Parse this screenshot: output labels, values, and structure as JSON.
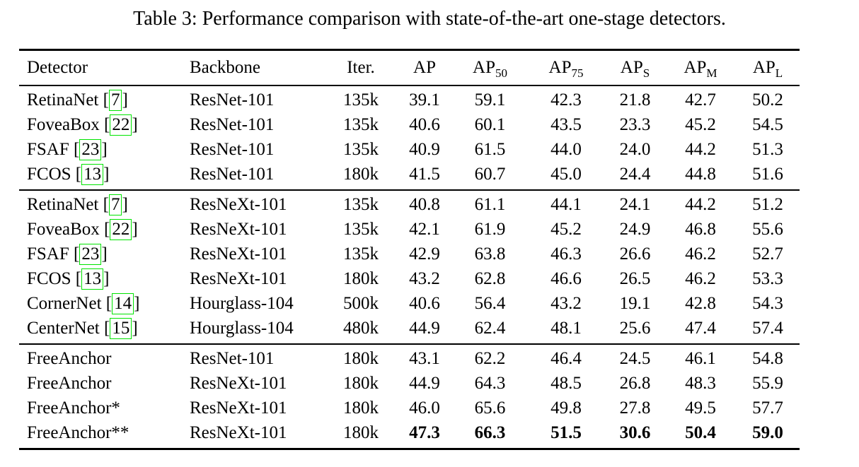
{
  "caption": "Table 3: Performance comparison with state-of-the-art one-stage detectors.",
  "colors": {
    "citation_box": "#00e400",
    "text": "#000000",
    "background": "#ffffff",
    "rule": "#000000"
  },
  "table": {
    "columns": [
      {
        "key": "detector",
        "label": "Detector",
        "sub": ""
      },
      {
        "key": "backbone",
        "label": "Backbone",
        "sub": ""
      },
      {
        "key": "iter",
        "label": "Iter.",
        "sub": ""
      },
      {
        "key": "ap",
        "label": "AP",
        "sub": ""
      },
      {
        "key": "ap50",
        "label": "AP",
        "sub": "50"
      },
      {
        "key": "ap75",
        "label": "AP",
        "sub": "75"
      },
      {
        "key": "aps",
        "label": "AP",
        "sub": "S"
      },
      {
        "key": "apm",
        "label": "AP",
        "sub": "M"
      },
      {
        "key": "apl",
        "label": "AP",
        "sub": "L"
      }
    ],
    "groups": [
      {
        "rows": [
          {
            "detector": "RetinaNet",
            "cite": "7",
            "backbone": "ResNet-101",
            "iter": "135k",
            "values": [
              "39.1",
              "59.1",
              "42.3",
              "21.8",
              "42.7",
              "50.2"
            ],
            "bold": false
          },
          {
            "detector": "FoveaBox",
            "cite": "22",
            "backbone": "ResNet-101",
            "iter": "135k",
            "values": [
              "40.6",
              "60.1",
              "43.5",
              "23.3",
              "45.2",
              "54.5"
            ],
            "bold": false
          },
          {
            "detector": "FSAF",
            "cite": "23",
            "backbone": "ResNet-101",
            "iter": "135k",
            "values": [
              "40.9",
              "61.5",
              "44.0",
              "24.0",
              "44.2",
              "51.3"
            ],
            "bold": false
          },
          {
            "detector": "FCOS",
            "cite": "13",
            "backbone": "ResNet-101",
            "iter": "180k",
            "values": [
              "41.5",
              "60.7",
              "45.0",
              "24.4",
              "44.8",
              "51.6"
            ],
            "bold": false
          }
        ]
      },
      {
        "rows": [
          {
            "detector": "RetinaNet",
            "cite": "7",
            "backbone": "ResNeXt-101",
            "iter": "135k",
            "values": [
              "40.8",
              "61.1",
              "44.1",
              "24.1",
              "44.2",
              "51.2"
            ],
            "bold": false
          },
          {
            "detector": "FoveaBox",
            "cite": "22",
            "backbone": "ResNeXt-101",
            "iter": "135k",
            "values": [
              "42.1",
              "61.9",
              "45.2",
              "24.9",
              "46.8",
              "55.6"
            ],
            "bold": false
          },
          {
            "detector": "FSAF",
            "cite": "23",
            "backbone": "ResNeXt-101",
            "iter": "135k",
            "values": [
              "42.9",
              "63.8",
              "46.3",
              "26.6",
              "46.2",
              "52.7"
            ],
            "bold": false
          },
          {
            "detector": "FCOS",
            "cite": "13",
            "backbone": "ResNeXt-101",
            "iter": "180k",
            "values": [
              "43.2",
              "62.8",
              "46.6",
              "26.5",
              "46.2",
              "53.3"
            ],
            "bold": false
          },
          {
            "detector": "CornerNet",
            "cite": "14",
            "backbone": "Hourglass-104",
            "iter": "500k",
            "values": [
              "40.6",
              "56.4",
              "43.2",
              "19.1",
              "42.8",
              "54.3"
            ],
            "bold": false
          },
          {
            "detector": "CenterNet",
            "cite": "15",
            "backbone": "Hourglass-104",
            "iter": "480k",
            "values": [
              "44.9",
              "62.4",
              "48.1",
              "25.6",
              "47.4",
              "57.4"
            ],
            "bold": false
          }
        ]
      },
      {
        "rows": [
          {
            "detector": "FreeAnchor",
            "cite": null,
            "backbone": "ResNet-101",
            "iter": "180k",
            "values": [
              "43.1",
              "62.2",
              "46.4",
              "24.5",
              "46.1",
              "54.8"
            ],
            "bold": false
          },
          {
            "detector": "FreeAnchor",
            "cite": null,
            "backbone": "ResNeXt-101",
            "iter": "180k",
            "values": [
              "44.9",
              "64.3",
              "48.5",
              "26.8",
              "48.3",
              "55.9"
            ],
            "bold": false
          },
          {
            "detector": "FreeAnchor*",
            "cite": null,
            "backbone": "ResNeXt-101",
            "iter": "180k",
            "values": [
              "46.0",
              "65.6",
              "49.8",
              "27.8",
              "49.5",
              "57.7"
            ],
            "bold": false
          },
          {
            "detector": "FreeAnchor**",
            "cite": null,
            "backbone": "ResNeXt-101",
            "iter": "180k",
            "values": [
              "47.3",
              "66.3",
              "51.5",
              "30.6",
              "50.4",
              "59.0"
            ],
            "bold": true
          }
        ]
      }
    ]
  }
}
